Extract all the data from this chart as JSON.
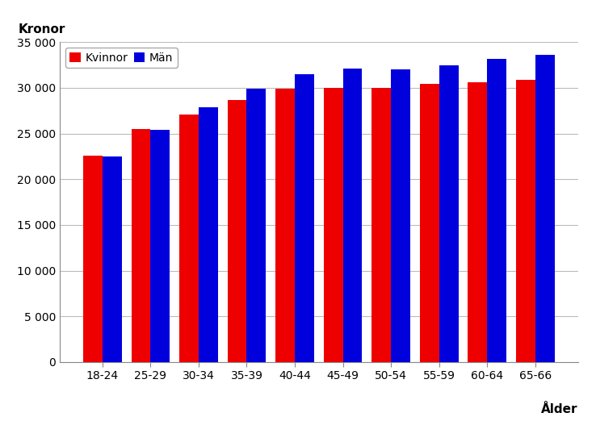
{
  "categories": [
    "18-24",
    "25-29",
    "30-34",
    "35-39",
    "40-44",
    "45-49",
    "50-54",
    "55-59",
    "60-64",
    "65-66"
  ],
  "kvinnor": [
    22600,
    25500,
    27100,
    28700,
    29900,
    30000,
    30000,
    30400,
    30600,
    30900
  ],
  "man": [
    22500,
    25400,
    27900,
    29900,
    31500,
    32100,
    32000,
    32500,
    33200,
    33600
  ],
  "bar_color_kvinnor": "#ee0000",
  "bar_color_man": "#0000dd",
  "ylabel": "Kronor",
  "xlabel": "Ålder",
  "ylim": [
    0,
    35000
  ],
  "yticks": [
    0,
    5000,
    10000,
    15000,
    20000,
    25000,
    30000,
    35000
  ],
  "legend_labels": [
    "Kvinnor",
    "Män"
  ],
  "background_color": "#ffffff",
  "grid_color": "#bbbbbb"
}
